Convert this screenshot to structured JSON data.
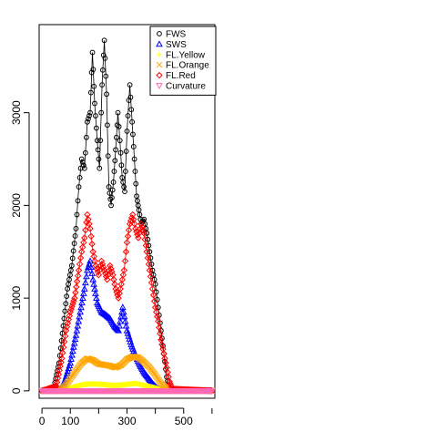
{
  "chart_data": {
    "type": "scatter",
    "title": "",
    "xlabel": "",
    "ylabel": "",
    "xlim": [
      -10,
      610
    ],
    "ylim": [
      -80,
      3950
    ],
    "x_ticks": [
      0,
      100,
      300,
      500
    ],
    "y_ticks": [
      0,
      1000,
      2000,
      3000
    ],
    "grid": false,
    "legend_position": "top-right",
    "series": [
      {
        "name": "FWS",
        "color": "#000000",
        "marker": "circle",
        "connected": true,
        "points": [
          [
            0,
            0
          ],
          [
            40,
            5
          ],
          [
            60,
            300
          ],
          [
            75,
            700
          ],
          [
            90,
            1100
          ],
          [
            105,
            1350
          ],
          [
            120,
            1750
          ],
          [
            130,
            2200
          ],
          [
            140,
            2500
          ],
          [
            150,
            2400
          ],
          [
            160,
            2900
          ],
          [
            170,
            3000
          ],
          [
            178,
            3650
          ],
          [
            186,
            3100
          ],
          [
            195,
            2700
          ],
          [
            203,
            2400
          ],
          [
            212,
            3300
          ],
          [
            220,
            3780
          ],
          [
            228,
            3200
          ],
          [
            236,
            2200
          ],
          [
            244,
            2000
          ],
          [
            252,
            2250
          ],
          [
            260,
            2600
          ],
          [
            268,
            3000
          ],
          [
            275,
            2700
          ],
          [
            283,
            2300
          ],
          [
            292,
            2150
          ],
          [
            300,
            2800
          ],
          [
            310,
            3300
          ],
          [
            318,
            2900
          ],
          [
            326,
            2500
          ],
          [
            334,
            2100
          ],
          [
            342,
            1950
          ],
          [
            350,
            1800
          ],
          [
            360,
            1850
          ],
          [
            370,
            1700
          ],
          [
            380,
            1500
          ],
          [
            390,
            1300
          ],
          [
            400,
            1150
          ],
          [
            410,
            900
          ],
          [
            420,
            650
          ],
          [
            430,
            400
          ],
          [
            440,
            150
          ],
          [
            450,
            20
          ],
          [
            470,
            5
          ],
          [
            600,
            0
          ]
        ]
      },
      {
        "name": "SWS",
        "color": "#0000ff",
        "marker": "triangle-up",
        "connected": true,
        "points": [
          [
            0,
            0
          ],
          [
            60,
            0
          ],
          [
            80,
            100
          ],
          [
            100,
            300
          ],
          [
            120,
            600
          ],
          [
            135,
            850
          ],
          [
            150,
            1100
          ],
          [
            160,
            1300
          ],
          [
            170,
            1400
          ],
          [
            180,
            1200
          ],
          [
            195,
            950
          ],
          [
            210,
            850
          ],
          [
            225,
            820
          ],
          [
            240,
            780
          ],
          [
            255,
            700
          ],
          [
            270,
            650
          ],
          [
            285,
            900
          ],
          [
            300,
            650
          ],
          [
            315,
            500
          ],
          [
            330,
            380
          ],
          [
            345,
            280
          ],
          [
            360,
            200
          ],
          [
            375,
            140
          ],
          [
            390,
            80
          ],
          [
            405,
            30
          ],
          [
            420,
            10
          ],
          [
            600,
            0
          ]
        ]
      },
      {
        "name": "FL.Yellow",
        "color": "#ffff00",
        "marker": "plus",
        "connected": true,
        "points": [
          [
            0,
            0
          ],
          [
            60,
            0
          ],
          [
            90,
            20
          ],
          [
            120,
            50
          ],
          [
            150,
            70
          ],
          [
            180,
            75
          ],
          [
            210,
            70
          ],
          [
            240,
            60
          ],
          [
            270,
            60
          ],
          [
            300,
            70
          ],
          [
            330,
            80
          ],
          [
            360,
            60
          ],
          [
            390,
            40
          ],
          [
            420,
            15
          ],
          [
            450,
            0
          ],
          [
            600,
            0
          ]
        ]
      },
      {
        "name": "FL.Orange",
        "color": "#ffa500",
        "marker": "cross",
        "connected": true,
        "points": [
          [
            0,
            0
          ],
          [
            60,
            0
          ],
          [
            80,
            50
          ],
          [
            100,
            130
          ],
          [
            120,
            220
          ],
          [
            140,
            300
          ],
          [
            160,
            350
          ],
          [
            180,
            330
          ],
          [
            200,
            290
          ],
          [
            220,
            280
          ],
          [
            240,
            270
          ],
          [
            260,
            250
          ],
          [
            280,
            280
          ],
          [
            300,
            340
          ],
          [
            320,
            370
          ],
          [
            340,
            360
          ],
          [
            360,
            310
          ],
          [
            380,
            250
          ],
          [
            400,
            170
          ],
          [
            420,
            80
          ],
          [
            440,
            20
          ],
          [
            600,
            0
          ]
        ]
      },
      {
        "name": "FL.Red",
        "color": "#ff0000",
        "marker": "diamond",
        "connected": true,
        "points": [
          [
            0,
            0
          ],
          [
            50,
            50
          ],
          [
            70,
            350
          ],
          [
            85,
            650
          ],
          [
            100,
            850
          ],
          [
            115,
            1000
          ],
          [
            130,
            1300
          ],
          [
            140,
            1500
          ],
          [
            150,
            1650
          ],
          [
            160,
            1900
          ],
          [
            170,
            1750
          ],
          [
            180,
            1500
          ],
          [
            190,
            1350
          ],
          [
            200,
            1250
          ],
          [
            210,
            1400
          ],
          [
            220,
            1300
          ],
          [
            230,
            1200
          ],
          [
            240,
            1350
          ],
          [
            250,
            1250
          ],
          [
            260,
            1100
          ],
          [
            270,
            1000
          ],
          [
            280,
            1150
          ],
          [
            290,
            1300
          ],
          [
            300,
            1600
          ],
          [
            310,
            1800
          ],
          [
            320,
            1900
          ],
          [
            330,
            1750
          ],
          [
            340,
            1650
          ],
          [
            350,
            1800
          ],
          [
            360,
            1700
          ],
          [
            370,
            1500
          ],
          [
            380,
            1300
          ],
          [
            390,
            1100
          ],
          [
            400,
            900
          ],
          [
            410,
            750
          ],
          [
            420,
            550
          ],
          [
            430,
            400
          ],
          [
            440,
            250
          ],
          [
            450,
            100
          ],
          [
            460,
            20
          ],
          [
            600,
            0
          ]
        ]
      },
      {
        "name": "Curvature",
        "color": "#ff69b4",
        "marker": "triangle-down",
        "connected": true,
        "points": [
          [
            0,
            0
          ],
          [
            100,
            0
          ],
          [
            200,
            0
          ],
          [
            300,
            0
          ],
          [
            400,
            0
          ],
          [
            500,
            0
          ],
          [
            600,
            0
          ]
        ]
      }
    ]
  }
}
